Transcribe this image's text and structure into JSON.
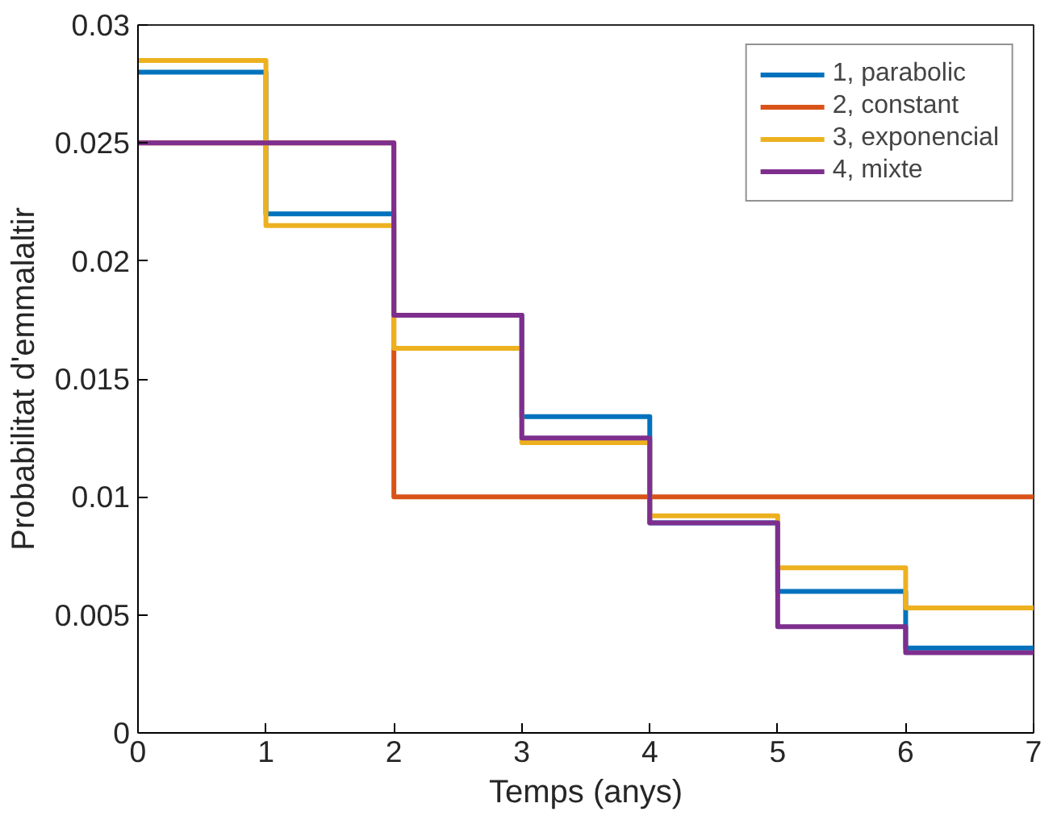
{
  "chart_data": {
    "type": "step",
    "xlabel": "Temps (anys)",
    "ylabel": "Probabilitat d'emmalaltir",
    "x": [
      0,
      1,
      2,
      3,
      4,
      5,
      6,
      7
    ],
    "series": [
      {
        "name": "1, parabolic",
        "color": "#0072bd",
        "values": [
          0.028,
          0.022,
          0.0177,
          0.0134,
          0.0089,
          0.006,
          0.0036,
          0.0036
        ]
      },
      {
        "name": "2, constant",
        "color": "#d95319",
        "values": [
          0.025,
          0.025,
          0.01,
          0.01,
          0.01,
          0.01,
          0.01,
          0.01
        ]
      },
      {
        "name": "3, exponencial",
        "color": "#edb120",
        "values": [
          0.0285,
          0.0215,
          0.0163,
          0.0123,
          0.0092,
          0.007,
          0.0053,
          0.0053
        ]
      },
      {
        "name": "4, mixte",
        "color": "#7e2f8e",
        "values": [
          0.025,
          0.025,
          0.0177,
          0.0125,
          0.0089,
          0.0045,
          0.0034,
          0.0034
        ]
      }
    ],
    "xlim": [
      0,
      7
    ],
    "ylim": [
      0,
      0.03
    ],
    "xticks": [
      0,
      1,
      2,
      3,
      4,
      5,
      6,
      7
    ],
    "yticks": [
      0,
      {
        "value": 0.005,
        "label": "0.005"
      },
      {
        "value": 0.01,
        "label": "0.01"
      },
      {
        "value": 0.015,
        "label": "0.015"
      },
      {
        "value": 0.02,
        "label": "0.02"
      },
      {
        "value": 0.025,
        "label": "0.025"
      },
      {
        "value": 0.03,
        "label": "0.03"
      }
    ],
    "grid": false,
    "legend": "top right",
    "line_style": "solid"
  }
}
